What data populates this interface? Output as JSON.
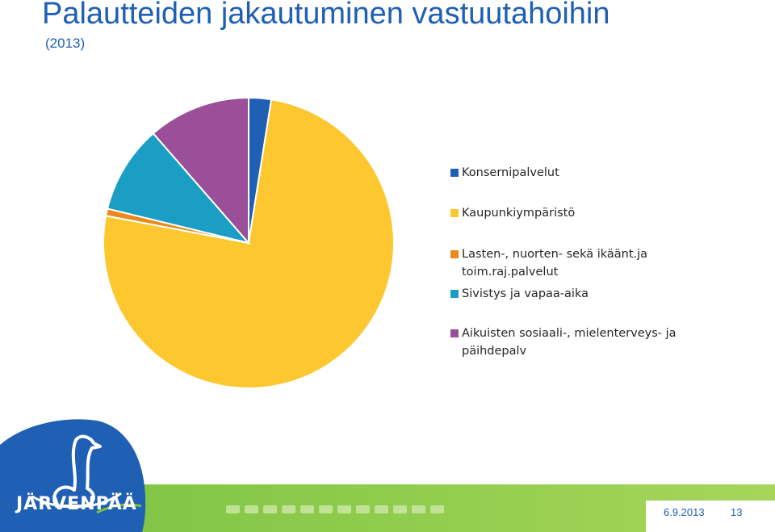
{
  "header": {
    "title": "Palautteiden jakautuminen vastuutahoihin",
    "subtitle": "(2013)"
  },
  "chart_data": {
    "type": "pie",
    "start_angle_deg": 0,
    "direction": "clockwise",
    "legend_position": "right",
    "slices": [
      {
        "label": "Konsernipalvelut",
        "value": 2.5,
        "color": "#1f5fb4"
      },
      {
        "label": "Kaupunkiympäristö",
        "value": 75.5,
        "color": "#fcc72f"
      },
      {
        "label": "Lasten-, nuorten- sekä ikäänt.ja toim.raj.palvelut",
        "value": 0.8,
        "color": "#ea8a1c"
      },
      {
        "label": "Sivistys ja vapaa-aika",
        "value": 9.8,
        "color": "#1a9ec3"
      },
      {
        "label": "Aikuisten sosiaali-, mielenterveys- ja päihdepalv",
        "value": 11.4,
        "color": "#9b4f98"
      }
    ]
  },
  "legend": {
    "items": [
      {
        "label": "Konsernipalvelut",
        "color": "#1f5fb4"
      },
      {
        "label": "Kaupunkiympäristö",
        "color": "#fcc72f"
      },
      {
        "label": "Lasten-, nuorten- sekä ikäänt.ja toim.raj.palvelut",
        "color": "#ea8a1c"
      },
      {
        "label": "Sivistys ja vapaa-aika",
        "color": "#1a9ec3"
      },
      {
        "label": "Aikuisten sosiaali-, mielenterveys- ja päihdepalv",
        "color": "#9b4f98"
      }
    ]
  },
  "footer": {
    "date": "6.9.2013",
    "page_number": "13",
    "logo_text": "JÄRVENPÄÄ"
  }
}
